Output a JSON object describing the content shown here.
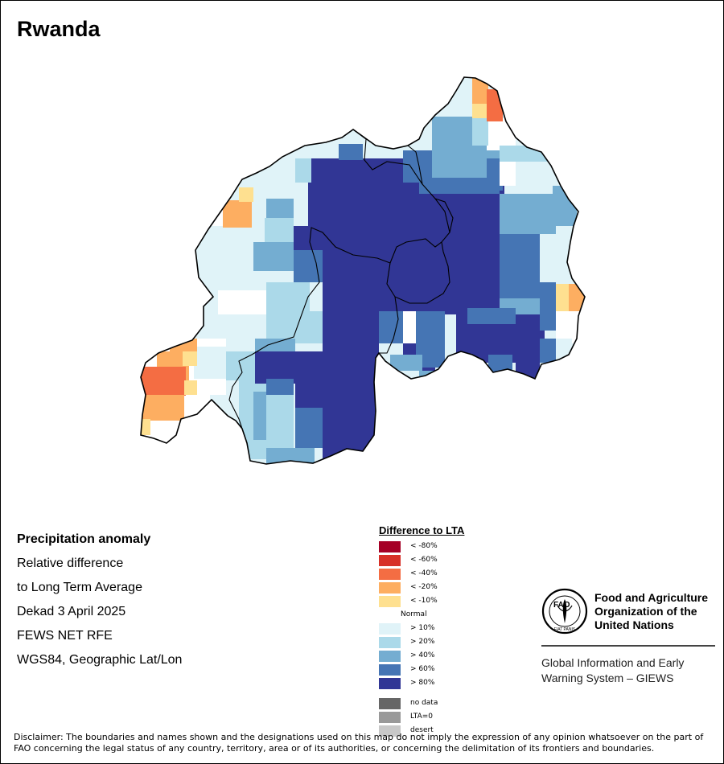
{
  "title": "Rwanda",
  "info_lines": [
    "Precipitation anomaly",
    "Relative difference",
    "to Long Term Average",
    "Dekad 3 April 2025",
    "FEWS NET RFE",
    "WGS84, Geographic Lat/Lon"
  ],
  "legend": {
    "title": "Difference to LTA",
    "classes": [
      {
        "label": "< -80%",
        "color": "#a50026"
      },
      {
        "label": "< -60%",
        "color": "#d73027"
      },
      {
        "label": "< -40%",
        "color": "#f46d43"
      },
      {
        "label": "< -20%",
        "color": "#fdae61"
      },
      {
        "label": "< -10%",
        "color": "#fee090"
      },
      {
        "label": "Normal",
        "color": "#ffffff"
      },
      {
        "label": "> 10%",
        "color": "#e0f3f8"
      },
      {
        "label": "> 20%",
        "color": "#abd9e9"
      },
      {
        "label": "> 40%",
        "color": "#74add1"
      },
      {
        "label": "> 60%",
        "color": "#4575b4"
      },
      {
        "label": "> 80%",
        "color": "#313695"
      }
    ],
    "extra": [
      {
        "label": "no data",
        "color": "#666666"
      },
      {
        "label": "LTA=0",
        "color": "#999999"
      },
      {
        "label": "desert",
        "color": "#c8c8c8"
      }
    ]
  },
  "fao": {
    "name_lines": [
      "Food and Agriculture",
      "Organization of the",
      "United Nations"
    ],
    "logo_letters": "FAO",
    "motto": "FIAT PANIS",
    "giews_lines": [
      "Global Information and Early",
      "Warning System – GIEWS"
    ]
  },
  "disclaimer": "Disclaimer: The boundaries and names shown and the designations used on this map do not imply the expression of any opinion whatsoever on the part of FAO concerning the legal status of any country, territory, area or of its authorities, or concerning the delimitation of its frontiers and boundaries."
}
